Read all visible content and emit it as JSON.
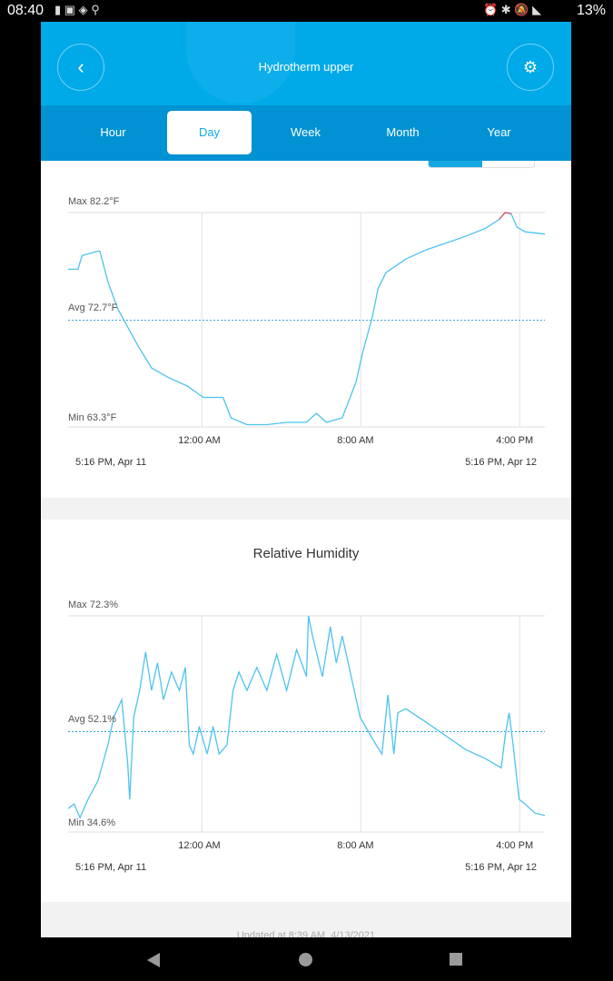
{
  "status_bar": {
    "time": "08:40",
    "battery": "13%"
  },
  "header": {
    "title": "Hydrotherm upper",
    "back_icon": "chevron-left-icon",
    "settings_icon": "gear-icon"
  },
  "tabs": [
    {
      "label": "Hour"
    },
    {
      "label": "Day",
      "active": true
    },
    {
      "label": "Week"
    },
    {
      "label": "Month"
    },
    {
      "label": "Year"
    }
  ],
  "footer": {
    "updated": "Updated at 8:39 AM, 4/13/2021"
  },
  "colors": {
    "accent": "#14a9e3",
    "header": "#00aae8",
    "line": "#4cc3ef",
    "max_highlight": "#d9506a"
  },
  "chart_data": [
    {
      "type": "line",
      "title": "",
      "max_label": "Max 82.2°F",
      "avg_label": "Avg 72.7°F",
      "min_label": "Min 63.3°F",
      "ylim": [
        63.3,
        82.2
      ],
      "avg": 72.7,
      "xlim": [
        0,
        24
      ],
      "x_unit": "hours since 5:16 PM Apr 11",
      "xticks": [
        {
          "x": 6.73,
          "label": "12:00 AM"
        },
        {
          "x": 14.73,
          "label": "8:00 AM"
        },
        {
          "x": 22.73,
          "label": "4:00 PM"
        }
      ],
      "start_label": "5:16 PM,  Apr 11",
      "end_label": "5:16 PM,  Apr 12",
      "x": [
        0,
        0.5,
        0.7,
        1.5,
        1.6,
        2.0,
        2.5,
        3.5,
        4.2,
        5,
        6,
        6.8,
        7.8,
        8.2,
        9,
        10,
        11,
        12,
        12.5,
        13,
        13.8,
        14.5,
        14.8,
        15.3,
        15.6,
        16,
        17,
        18,
        19,
        20,
        21,
        21.7,
        22,
        22.3,
        22.6,
        23,
        24
      ],
      "y": [
        77.2,
        77.2,
        78.4,
        78.8,
        78.8,
        76.1,
        73.7,
        70.5,
        68.5,
        67.7,
        66.9,
        65.9,
        65.9,
        64.1,
        63.5,
        63.5,
        63.7,
        63.7,
        64.5,
        63.7,
        64.1,
        67.3,
        69.7,
        72.9,
        75.5,
        76.9,
        78.1,
        78.9,
        79.5,
        80.1,
        80.8,
        81.6,
        82.2,
        82.1,
        80.9,
        80.5,
        80.3
      ]
    },
    {
      "type": "line",
      "title": "Relative Humidity",
      "max_label": "Max 72.3%",
      "avg_label": "Avg 52.1%",
      "min_label": "Min 34.6%",
      "ylim": [
        34.6,
        72.3
      ],
      "avg": 52.1,
      "xlim": [
        0,
        24
      ],
      "x_unit": "hours since 5:16 PM Apr 11",
      "xticks": [
        {
          "x": 6.73,
          "label": "12:00 AM"
        },
        {
          "x": 14.73,
          "label": "8:00 AM"
        },
        {
          "x": 22.73,
          "label": "4:00 PM"
        }
      ],
      "start_label": "5:16 PM,  Apr 11",
      "end_label": "5:16 PM,  Apr 12",
      "x": [
        0,
        0.3,
        0.6,
        1,
        1.5,
        2,
        2.3,
        2.7,
        3,
        3.1,
        3.3,
        3.6,
        3.9,
        4.2,
        4.5,
        4.8,
        5.2,
        5.6,
        5.9,
        6.1,
        6.3,
        6.6,
        7,
        7.3,
        7.6,
        8,
        8.3,
        8.6,
        9,
        9.5,
        10,
        10.5,
        11,
        11.5,
        12,
        12.1,
        12.3,
        12.8,
        13.2,
        13.5,
        13.8,
        14.2,
        14.7,
        15.5,
        15.8,
        16.1,
        16.4,
        16.6,
        17,
        18,
        19,
        20,
        21,
        21.8,
        22,
        22.2,
        22.4,
        22.7,
        23,
        23.5,
        24
      ],
      "y": [
        38.7,
        39.5,
        37.1,
        40.3,
        43.5,
        49.8,
        54.6,
        57.7,
        46.6,
        40.3,
        54.6,
        59.3,
        66.0,
        59.3,
        64.1,
        57.7,
        62.5,
        59.3,
        63.3,
        49.8,
        48.2,
        53.0,
        48.2,
        53.0,
        48.2,
        49.8,
        59.3,
        62.5,
        59.3,
        63.3,
        59.3,
        65.6,
        59.3,
        66.4,
        61.7,
        72.3,
        68.8,
        61.7,
        70.4,
        64.1,
        68.8,
        62.5,
        54.6,
        49.8,
        48.2,
        58.5,
        48.2,
        55.4,
        56.1,
        53.8,
        51.4,
        49.0,
        47.4,
        45.8,
        51.4,
        55.4,
        49.8,
        40.3,
        39.5,
        37.9,
        37.5
      ]
    }
  ]
}
